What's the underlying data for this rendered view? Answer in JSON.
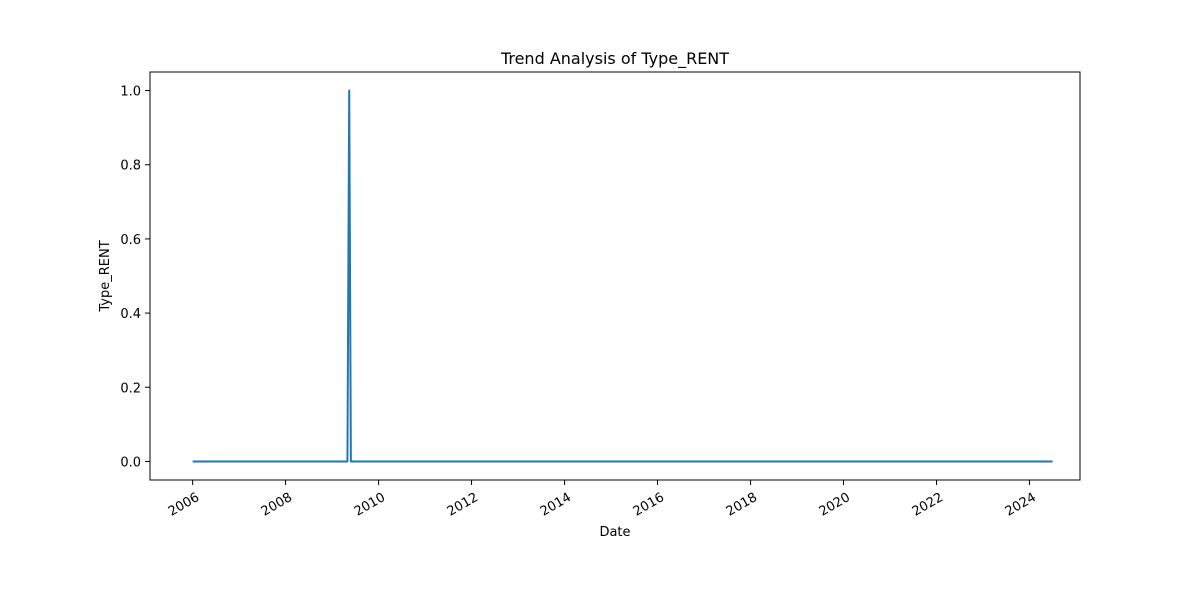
{
  "chart_data": {
    "type": "line",
    "title": "Trend Analysis of Type_RENT",
    "xlabel": "Date",
    "ylabel": "Type_RENT",
    "x_ticks": [
      "2006",
      "2008",
      "2010",
      "2012",
      "2014",
      "2016",
      "2018",
      "2020",
      "2022",
      "2024"
    ],
    "y_ticks": [
      "0.0",
      "0.2",
      "0.4",
      "0.6",
      "0.8",
      "1.0"
    ],
    "xlim": [
      "2005-01-31",
      "2025-02-01"
    ],
    "ylim": [
      -0.05,
      1.05
    ],
    "grid": false,
    "series": [
      {
        "color": "#1f77b4",
        "points": [
          {
            "x": "2006-01-01",
            "y": 0
          },
          {
            "x": "2009-05-01",
            "y": 0
          },
          {
            "x": "2009-05-15",
            "y": 1
          },
          {
            "x": "2009-05-28",
            "y": 0
          },
          {
            "x": "2024-07-01",
            "y": 0
          }
        ]
      }
    ]
  }
}
